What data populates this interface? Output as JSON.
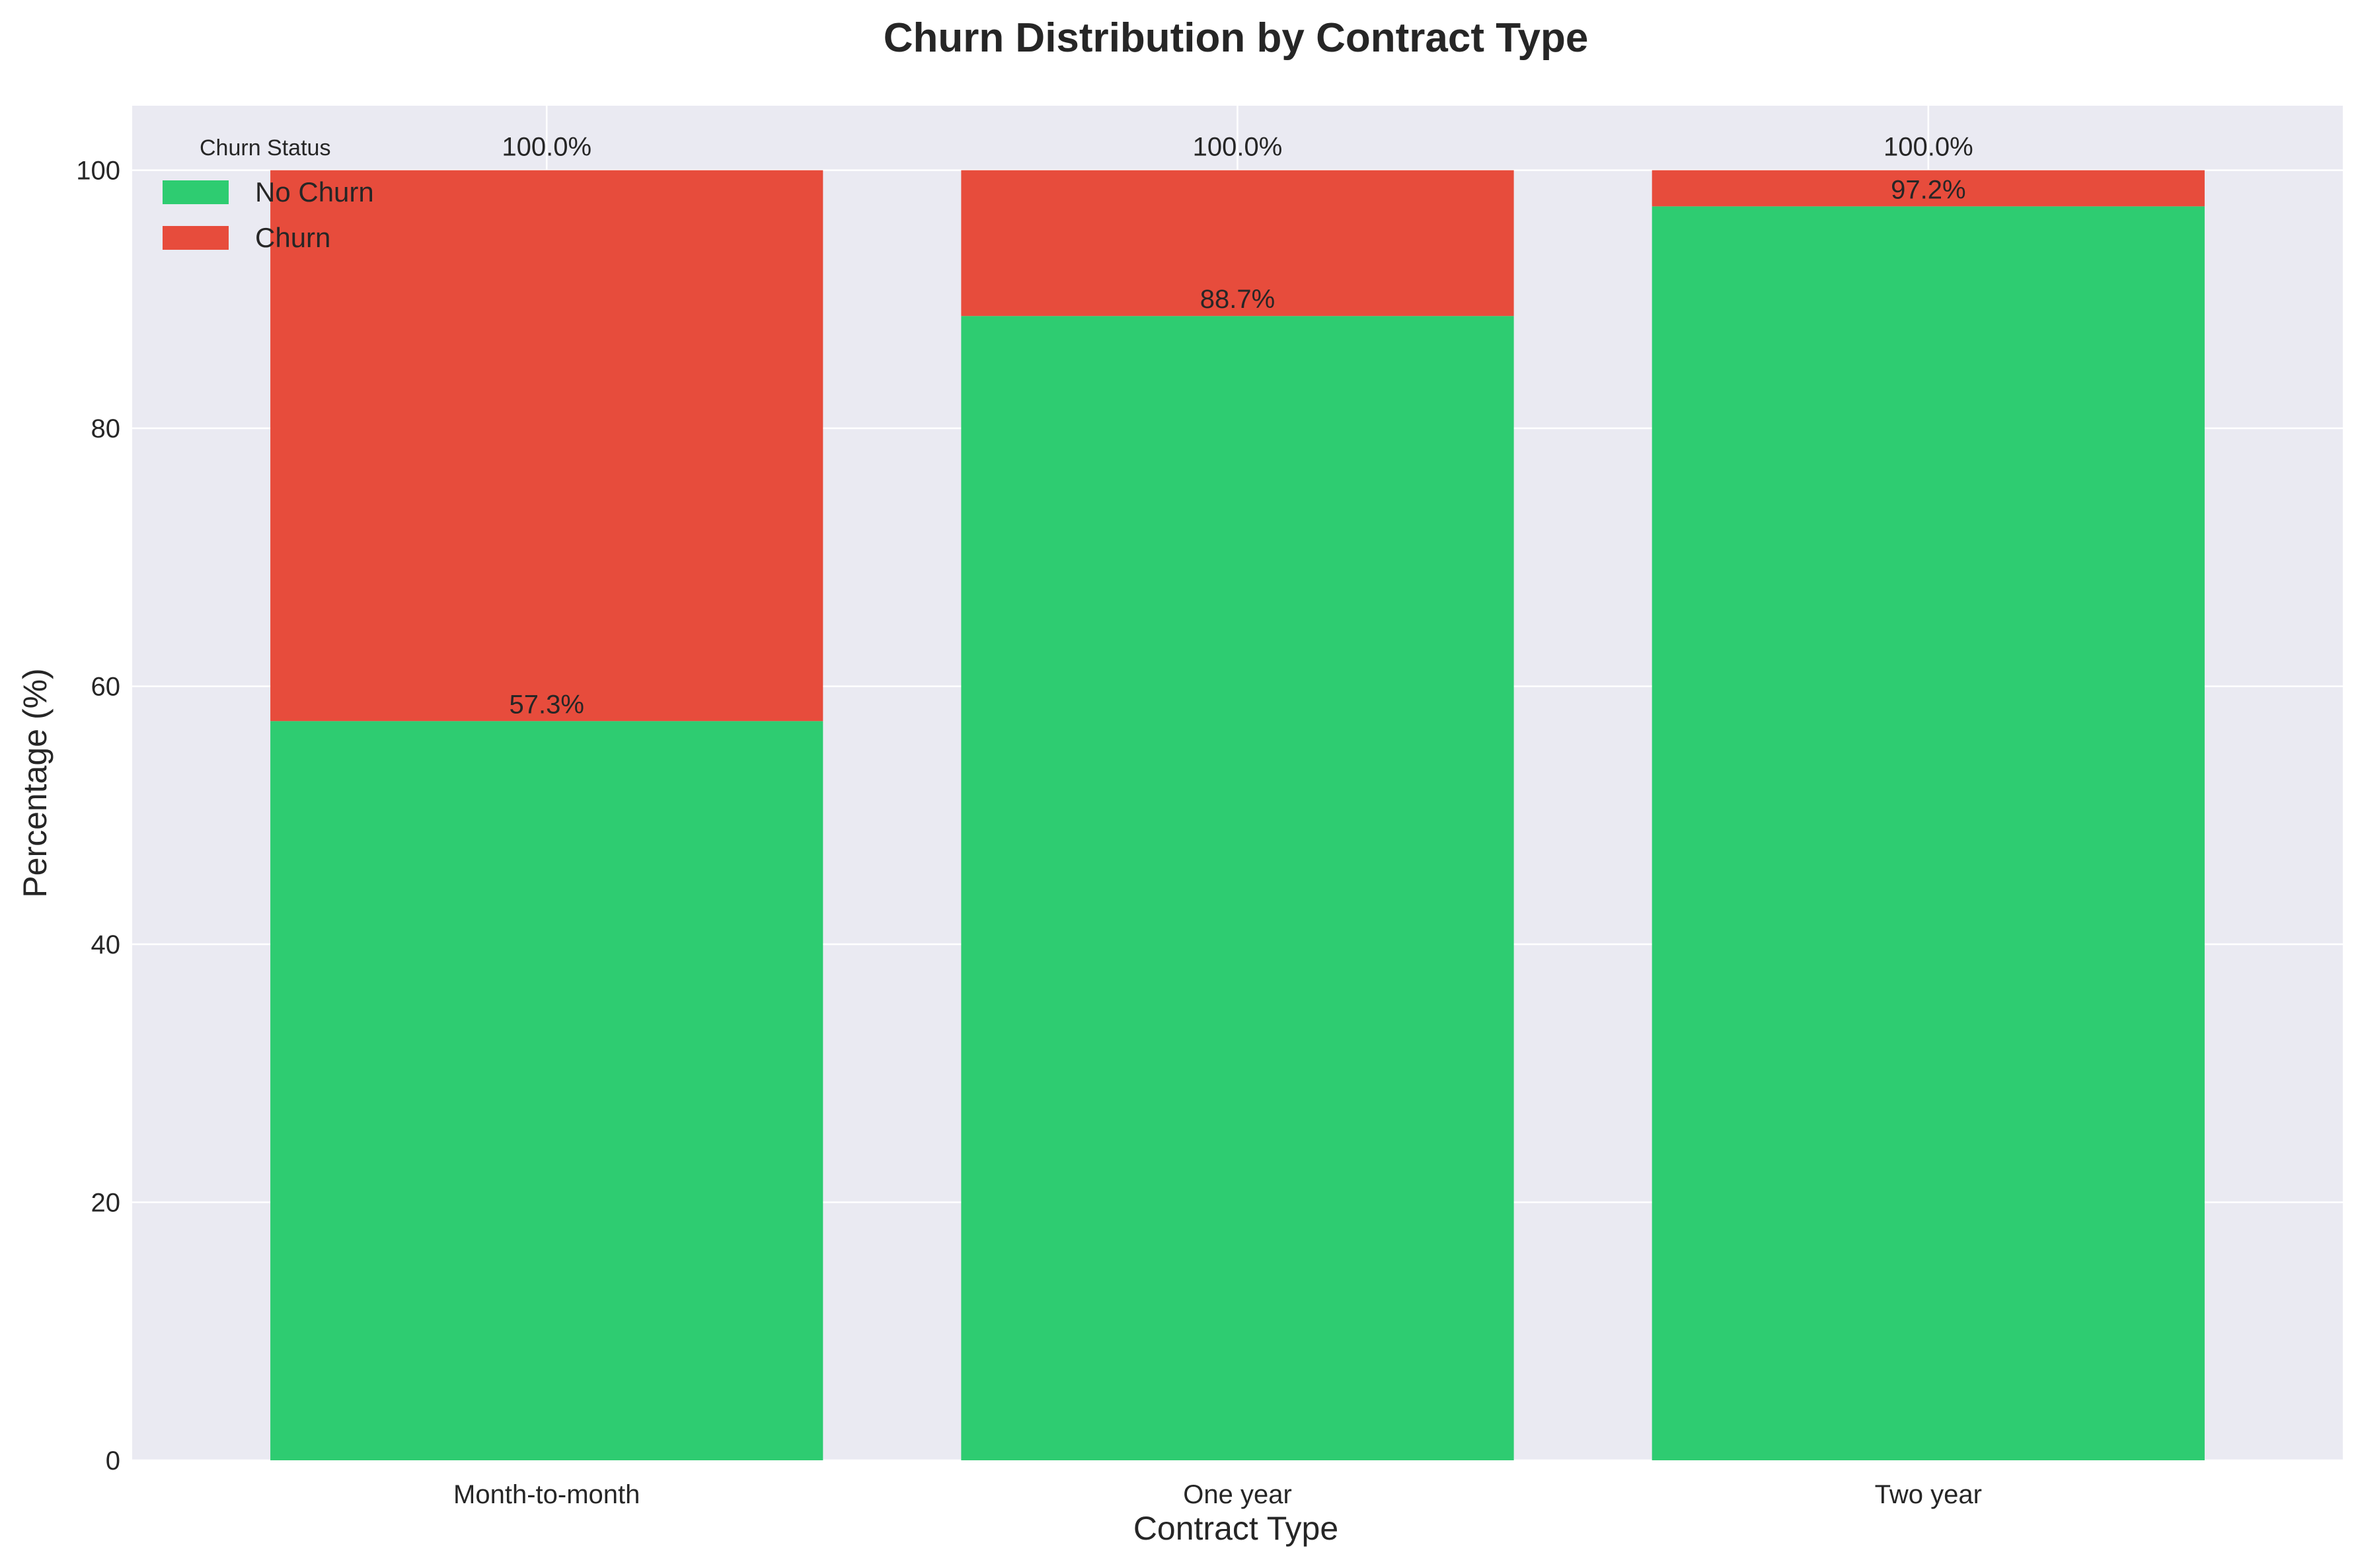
{
  "chart_data": {
    "type": "bar",
    "stacked": true,
    "title": "Churn Distribution by Contract Type",
    "xlabel": "Contract Type",
    "ylabel": "Percentage (%)",
    "categories": [
      "Month-to-month",
      "One year",
      "Two year"
    ],
    "series": [
      {
        "name": "No Churn",
        "values": [
          57.3,
          88.7,
          97.2
        ],
        "color": "#2ecc71"
      },
      {
        "name": "Churn",
        "values": [
          42.7,
          11.3,
          2.8
        ],
        "color": "#e74c3c"
      }
    ],
    "segment_labels": [
      "57.3%",
      "88.7%",
      "97.2%"
    ],
    "total_labels": [
      "100.0%",
      "100.0%",
      "100.0%"
    ],
    "ylim": [
      0,
      105
    ],
    "yticks": [
      0,
      20,
      40,
      60,
      80,
      100
    ],
    "grid": true,
    "background": "#eaeaf2",
    "legend": {
      "title": "Churn Status",
      "placement": "top-left"
    }
  }
}
